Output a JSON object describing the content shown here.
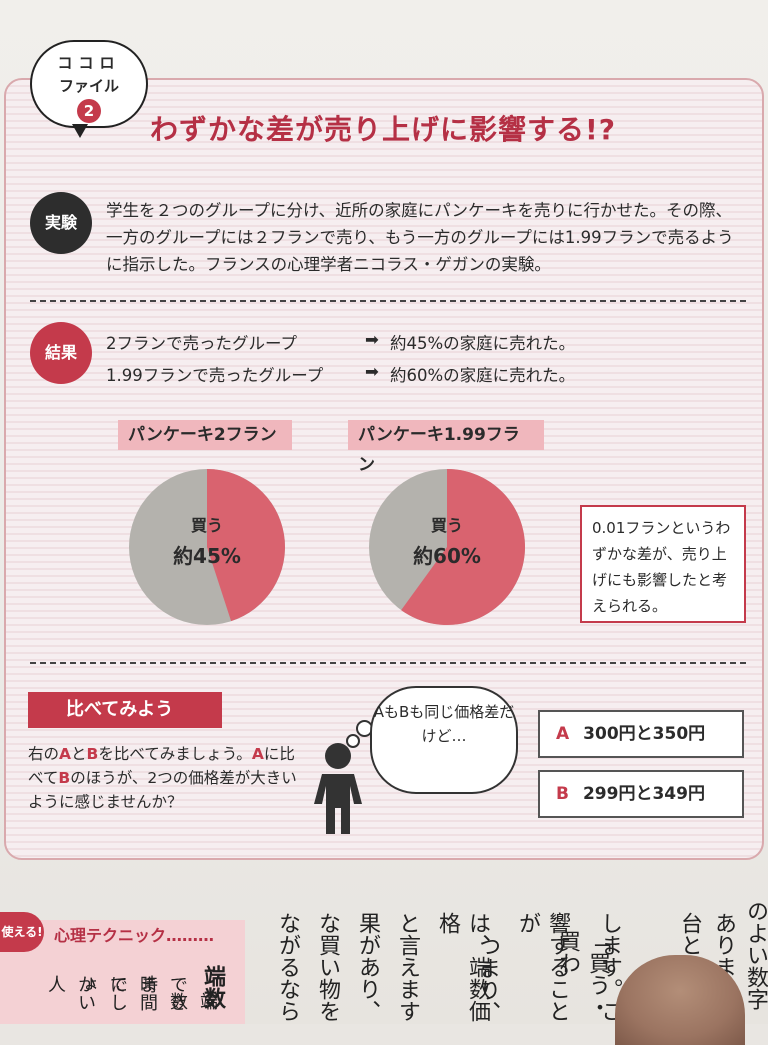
{
  "header": {
    "bubble_line1": "ココロ",
    "bubble_line2": "ファイル",
    "bubble_number": "2",
    "title": "わずかな差が売り上げに影響する!?"
  },
  "experiment": {
    "tag": "実験",
    "text": "学生を２つのグループに分け、近所の家庭にパンケーキを売りに行かせた。その際、一方のグループには２フランで売り、もう一方のグループには1.99フランで売るように指示した。フランスの心理学者ニコラス・ゲガンの実験。"
  },
  "result": {
    "tag": "結果",
    "rows": [
      {
        "group": "2フランで売ったグループ",
        "outcome": "約45%の家庭に売れた。"
      },
      {
        "group": "1.99フランで売ったグループ",
        "outcome": "約60%の家庭に売れた。"
      }
    ],
    "arrow": "➡"
  },
  "chart_data": [
    {
      "type": "pie",
      "title": "パンケーキ2フラン",
      "labels": [
        "買う",
        ""
      ],
      "values": [
        45,
        55
      ],
      "center_label": "買う",
      "center_value": "約45%",
      "colors": [
        "#d9636f",
        "#b4b2ad"
      ]
    },
    {
      "type": "pie",
      "title": "パンケーキ1.99フラン",
      "labels": [
        "買う",
        ""
      ],
      "values": [
        60,
        40
      ],
      "center_label": "買う",
      "center_value": "約60%",
      "colors": [
        "#d9636f",
        "#b4b2ad"
      ]
    }
  ],
  "note": {
    "text": "0.01フランというわずかな差が、売り上げにも影響したと考えられる。"
  },
  "compare": {
    "heading": "比べてみよう",
    "text_parts": [
      "右の",
      "A",
      "と",
      "B",
      "を比べてみましょう。",
      "A",
      "に比べて",
      "B",
      "のほうが、2つの価格差が大きいように感じませんか？"
    ],
    "thought": "AもBも同じ価格差だけど…",
    "options": [
      {
        "key": "A",
        "text": "300円と350円"
      },
      {
        "key": "B",
        "text": "299円と349円"
      }
    ]
  },
  "bottom": {
    "badge": "使える!",
    "tech_heading": "心理テクニック………",
    "columns": [
      "のよい数字",
      "ありまし",
      "台とな",
      "します。こ",
      "「買う・買わ",
      "響することが",
      "つまり、",
      "は、端数価格",
      "と言えます",
      "果があり、",
      "な買い物を",
      "ながるなら"
    ],
    "left_columns": [
      "端数",
      "端数",
      "できま",
      "時間に",
      "でしょ",
      "かい人"
    ]
  },
  "colors": {
    "accent": "#c43a4b",
    "pink": "#f0b7bd",
    "buy": "#d9636f",
    "rest": "#b4b2ad"
  }
}
